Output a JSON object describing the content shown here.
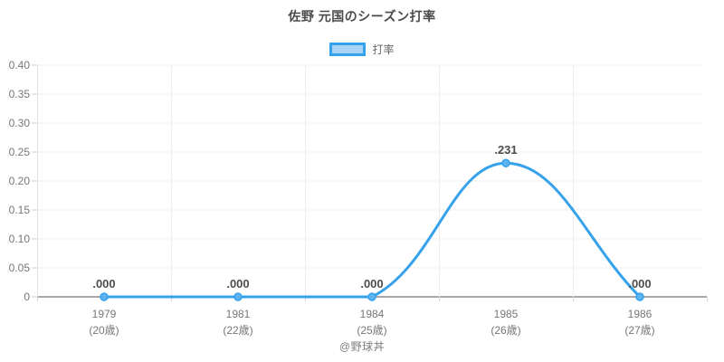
{
  "footer": "@野球丼",
  "chart_data": {
    "type": "line",
    "title": "佐野 元国のシーズン打率",
    "legend_position": "top",
    "categories": [
      "1979",
      "1981",
      "1984",
      "1985",
      "1986"
    ],
    "category_ages": [
      "(20歳)",
      "(22歳)",
      "(25歳)",
      "(26歳)",
      "(27歳)"
    ],
    "series": [
      {
        "name": "打率",
        "values": [
          0.0,
          0.0,
          0.0,
          0.231,
          0.0
        ],
        "point_labels": [
          ".000",
          ".000",
          ".000",
          ".231",
          ".000"
        ]
      }
    ],
    "xlabel": "",
    "ylabel": "",
    "ylim": [
      0,
      0.4
    ],
    "yticks": [
      0,
      0.05,
      0.1,
      0.15,
      0.2,
      0.25,
      0.3,
      0.35,
      0.4
    ],
    "ytick_labels": [
      "0",
      "0.05",
      "0.10",
      "0.15",
      "0.20",
      "0.25",
      "0.30",
      "0.35",
      "0.40"
    ],
    "grid": true,
    "line_tension": 0.4,
    "line_color": "#36A2EB",
    "point_fill": "#5eb3ef",
    "legend_fill": "#a9d4f5",
    "grid_color": "#e4e4e4",
    "axis_color": "#a8a8a8",
    "tick_text_color": "#777777",
    "data_label_color": "#4d4d4d"
  }
}
